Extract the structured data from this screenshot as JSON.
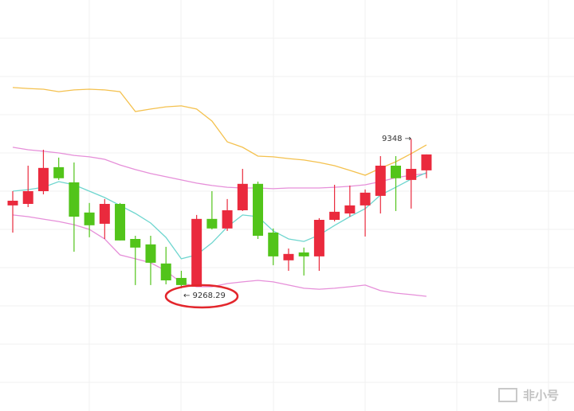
{
  "chart_data": {
    "type": "candlestick",
    "ylim": [
      9202.8,
      9422.1
    ],
    "up_color": "#ea2a3d",
    "down_color": "#52c41a",
    "candles": {
      "open": [
        9312.5,
        9313.3,
        9320.1,
        9332.9,
        9324.8,
        9308.7,
        9302.7,
        9313.3,
        9294.6,
        9291.7,
        9281.5,
        9273.8,
        9269.1,
        9305.3,
        9300.2,
        9309.9,
        9324.0,
        9298.0,
        9283.2,
        9287.4,
        9285.3,
        9304.8,
        9308.2,
        9312.5,
        9317.6,
        9333.7,
        9326.1,
        9331.2
      ],
      "high": [
        9320.1,
        9333.7,
        9342.2,
        9338.0,
        9335.4,
        9313.8,
        9315.9,
        9313.8,
        9296.3,
        9296.3,
        9290.4,
        9277.6,
        9307.4,
        9320.1,
        9315.9,
        9332.0,
        9325.2,
        9300.2,
        9289.5,
        9290.0,
        9305.7,
        9323.5,
        9323.1,
        9321.0,
        9338.8,
        9338.8,
        9348,
        9339.7
      ],
      "low": [
        9298.0,
        9311.6,
        9318.4,
        9326.1,
        9287.8,
        9295.5,
        9294.6,
        9293.8,
        9270.0,
        9270.0,
        9270.4,
        9268.29,
        9269.1,
        9299.7,
        9298.9,
        9309.5,
        9294.6,
        9280.6,
        9277.6,
        9275.1,
        9277.6,
        9304.0,
        9306.5,
        9295.9,
        9308.2,
        9309.5,
        9310.8,
        9327.0
      ],
      "close": [
        9315.0,
        9320.1,
        9332.5,
        9327.0,
        9306.5,
        9301.9,
        9313.3,
        9293.8,
        9290.0,
        9281.9,
        9272.5,
        9270.0,
        9305.3,
        9300.2,
        9309.9,
        9324.0,
        9296.3,
        9285.3,
        9286.6,
        9285.3,
        9304.8,
        9309.1,
        9312.5,
        9319.3,
        9333.7,
        9327.0,
        9332.0,
        9339.7
      ]
    },
    "lines": [
      {
        "color": "#f4c14e",
        "values": [
          9375.4,
          9374.9,
          9374.5,
          9373.2,
          9374.1,
          9374.5,
          9374.1,
          9373.2,
          9362.6,
          9363.9,
          9365.1,
          9365.6,
          9363.9,
          9357.5,
          9346.4,
          9343.5,
          9338.8,
          9338.4,
          9337.5,
          9336.7,
          9335.4,
          9333.7,
          9331.2,
          9328.6,
          9332.4,
          9335.8,
          9340.1,
          9344.8
        ]
      },
      {
        "color": "#e68fd9",
        "values": [
          9343.5,
          9342.2,
          9341.4,
          9340.5,
          9339.2,
          9338.4,
          9337.1,
          9334.1,
          9331.6,
          9329.5,
          9327.8,
          9326.1,
          9324.4,
          9323.1,
          9322.2,
          9321.8,
          9321.8,
          9321.4,
          9321.8,
          9321.8,
          9321.8,
          9322.2,
          9322.7,
          9323.5,
          9325.2,
          9327.3,
          9328.6,
          9329.5
        ]
      },
      {
        "color": "#e68fd9",
        "values": [
          9307.4,
          9306.5,
          9305.2,
          9303.9,
          9302.2,
          9299.7,
          9294.6,
          9286.1,
          9284.0,
          9281.9,
          9277.6,
          9271.2,
          9269.1,
          9269.1,
          9270.8,
          9271.7,
          9272.5,
          9271.7,
          9270.0,
          9268.3,
          9267.8,
          9268.3,
          9269.1,
          9270.0,
          9267.0,
          9265.7,
          9264.9,
          9264.0
        ]
      },
      {
        "color": "#6fd6cf",
        "values": [
          9320.1,
          9320.9,
          9322.2,
          9325.2,
          9323.5,
          9320.1,
          9316.7,
          9312.5,
          9308.2,
          9303.1,
          9295.4,
          9284.0,
          9286.1,
          9292.5,
          9301.0,
          9307.4,
          9306.5,
          9298.9,
          9294.6,
          9293.3,
          9296.7,
          9301.8,
          9306.5,
          9310.8,
          9318.0,
          9322.2,
          9326.5,
          9329.9
        ]
      }
    ],
    "annotations": [
      "9348 →",
      "← 9268.29"
    ],
    "watermark": "非小号"
  }
}
